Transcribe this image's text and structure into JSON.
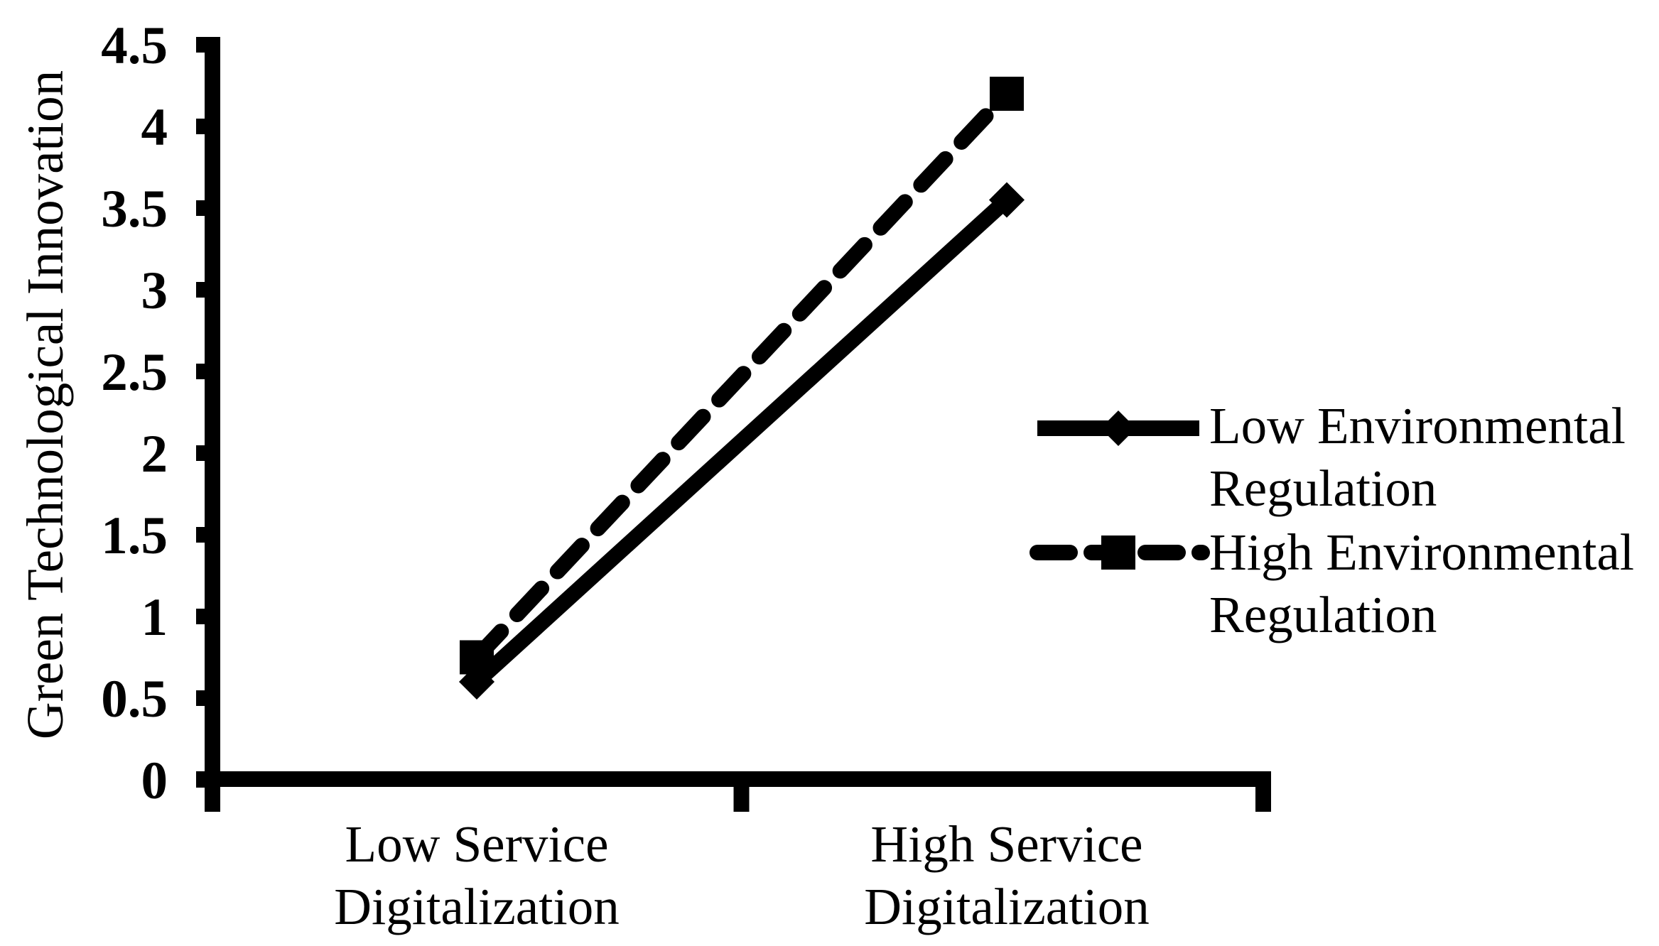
{
  "chart_data": {
    "type": "line",
    "title": "",
    "xlabel": "",
    "ylabel": "Green Technological Innovation",
    "categories": [
      "Low Service Digitalization",
      "High Service Digitalization"
    ],
    "categories_lines": [
      [
        "Low Service",
        "Digitalization"
      ],
      [
        "High Service",
        "Digitalization"
      ]
    ],
    "series": [
      {
        "name": "Low Environmental Regulation",
        "name_lines": [
          "Low Environmental",
          "Regulation"
        ],
        "values": [
          0.6,
          3.55
        ],
        "line_style": "solid",
        "marker": "diamond"
      },
      {
        "name": "High Environmental Regulation",
        "name_lines": [
          "High Environmental",
          "Regulation"
        ],
        "values": [
          0.75,
          4.2
        ],
        "line_style": "dashed",
        "marker": "square"
      }
    ],
    "ylim": [
      0,
      4.5
    ],
    "ytick_step": 0.5,
    "ytick_labels": [
      "0",
      "0.5",
      "1",
      "1.5",
      "2",
      "2.5",
      "3",
      "3.5",
      "4",
      "4.5"
    ],
    "grid": false,
    "legend_position": "right",
    "color": "#000000",
    "background": "#ffffff"
  }
}
